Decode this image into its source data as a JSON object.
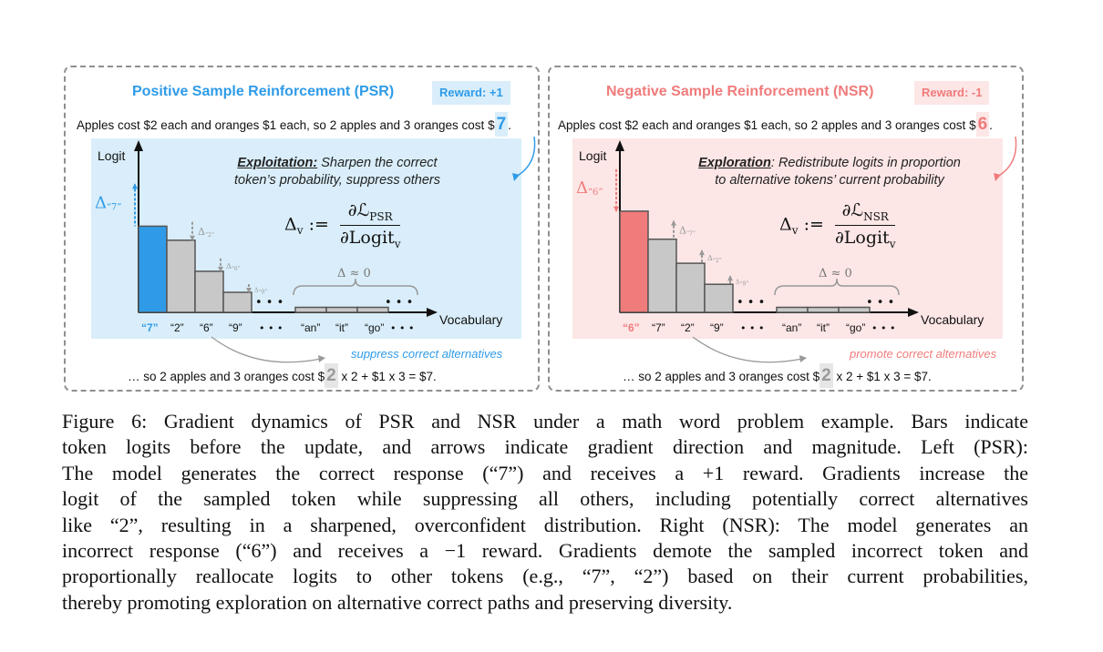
{
  "colors": {
    "psr": "#2f9be8",
    "psr_bg": "#d9eefa",
    "nsr": "#f07b7b",
    "nsr_bg": "#fde6e6",
    "bar_gray": "#c8c8c8"
  },
  "left": {
    "title": "Positive Sample Reinforcement (PSR)",
    "reward": "Reward: +1",
    "sentence": "Apples cost $2 each and oranges $1 each, so 2 apples and 3 oranges cost $",
    "sampled_token": "7",
    "sentence_end": ".",
    "y_axis": "Logit",
    "x_axis": "Vocabulary",
    "note_head": "Exploitation:",
    "note_rest": "Sharpen the correct",
    "note_line2": "token’s probability, suppress others",
    "delta_symbol": "Δ",
    "formula_lhs": "Δ",
    "formula_sub": "v",
    "formula_assign": ":=",
    "formula_num": "∂ℒ",
    "formula_num_sub": "PSR",
    "formula_den": "∂Logit",
    "formula_den_sub": "v",
    "approx": "Δ ≈ 0",
    "delta_labels": [
      "“7”",
      "“2”",
      "“6”",
      "“9”"
    ],
    "bar_values": [
      8.6,
      7.2,
      4.1,
      2.0
    ],
    "tail_values": [
      0.5,
      0.5,
      0.5
    ],
    "ellipsis": "• • •",
    "tick_labels": [
      "“7”",
      "“2”",
      "“6”",
      "“9”",
      "“an”",
      "“it”",
      "“go”"
    ],
    "hint": "suppress correct alternatives",
    "bottom_pre": "… so 2 apples and 3 oranges cost $",
    "bottom_token": "2",
    "bottom_post": "x 2 + $1 x 3 = $7."
  },
  "right": {
    "title": "Negative Sample Reinforcement (NSR)",
    "reward": "Reward: -1",
    "sentence": "Apples cost $2 each and oranges $1 each, so 2 apples and 3 oranges cost $",
    "sampled_token": "6",
    "sentence_end": ".",
    "y_axis": "Logit",
    "x_axis": "Vocabulary",
    "note_head": "Exploration",
    "note_rest": ": Redistribute logits in proportion",
    "note_line2": "to alternative tokens’ current probability",
    "delta_symbol": "Δ",
    "formula_lhs": "Δ",
    "formula_sub": "v",
    "formula_assign": ":=",
    "formula_num": "∂ℒ",
    "formula_num_sub": "NSR",
    "formula_den": "∂Logit",
    "formula_den_sub": "v",
    "approx": "Δ ≈ 0",
    "delta_labels": [
      "“6”",
      "“7”",
      "“2”",
      "“9”"
    ],
    "bar_values": [
      10.1,
      7.3,
      4.9,
      2.8
    ],
    "tail_values": [
      0.5,
      0.5,
      0.5
    ],
    "ellipsis": "• • •",
    "tick_labels": [
      "“6”",
      "“7”",
      "“2”",
      "“9”",
      "“an”",
      "“it”",
      "“go”"
    ],
    "hint": "promote correct alternatives",
    "bottom_pre": "… so 2 apples and 3 oranges cost $",
    "bottom_token": "2",
    "bottom_post": "x 2 + $1 x 3 = $7."
  },
  "caption": [
    "Figure 6: Gradient dynamics of PSR and NSR under a math word problem example. Bars indicate",
    "token logits before the update, and arrows indicate gradient direction and magnitude. Left (PSR):",
    "The model generates the correct response (“7”) and receives a +1 reward. Gradients increase the",
    "logit of the sampled token while suppressing all others, including potentially correct alternatives",
    "like “2”, resulting in a sharpened, overconfident distribution. Right (NSR): The model generates an",
    "incorrect response (“6”) and receives a −1 reward. Gradients demote the sampled incorrect token and",
    "proportionally reallocate logits to other tokens (e.g., “7”, “2”) based on their current probabilities,",
    "thereby promoting exploration on alternative correct paths and preserving diversity."
  ]
}
